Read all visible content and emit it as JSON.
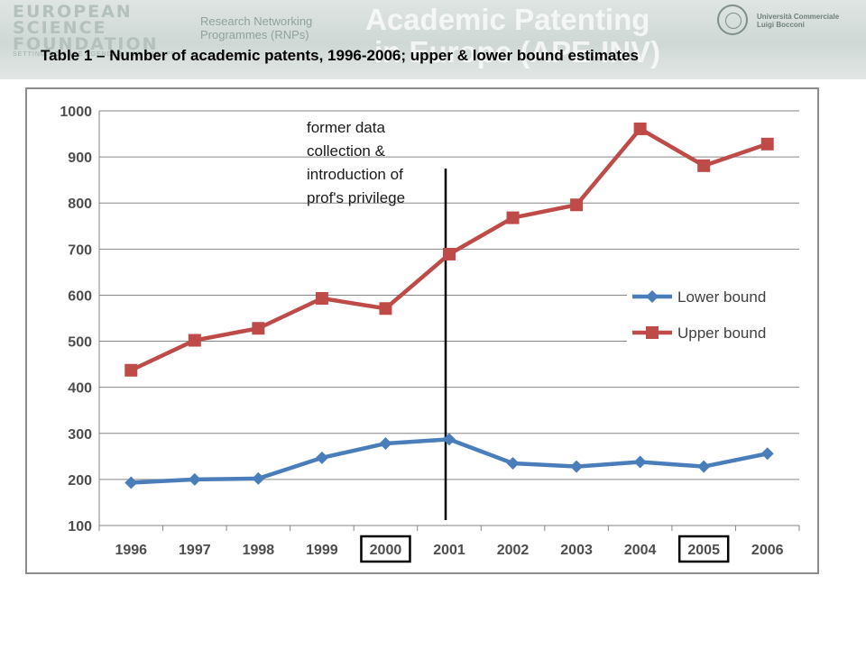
{
  "header": {
    "esf_logo_lines": [
      "EUROPEAN",
      "SCIENCE",
      "FOUNDATION"
    ],
    "esf_tagline": "SETTING SCIENCE AGENDAS FOR EUROPE",
    "rnp_line1": "Research Networking",
    "rnp_line2": "Programmes (RNPs)",
    "watermark_line1": "Academic Patenting",
    "watermark_line2": "in Europe (APE-INV)",
    "university_line1": "Università Commerciale",
    "university_line2": "Luigi Bocconi"
  },
  "table_title": "Table 1 – Number of academic patents, 1996-2006; upper & lower bound estimates",
  "colors": {
    "lower": "#4a7ebb",
    "upper": "#be4b48",
    "grid": "#868686",
    "axis_text": "#4d4d4d"
  },
  "chart_data": {
    "type": "line",
    "title": "",
    "xlabel": "",
    "ylabel": "",
    "categories": [
      "1996",
      "1997",
      "1998",
      "1999",
      "2000",
      "2001",
      "2002",
      "2003",
      "2004",
      "2005",
      "2006"
    ],
    "y_ticks": [
      "100",
      "200",
      "300",
      "400",
      "500",
      "600",
      "700",
      "800",
      "900",
      "1000"
    ],
    "ylim": [
      100,
      1000
    ],
    "grid": true,
    "legend_position": "right",
    "series": [
      {
        "name": "Lower bound",
        "marker": "diamond",
        "values": [
          193,
          200,
          202,
          247,
          278,
          287,
          235,
          228,
          238,
          228,
          256
        ]
      },
      {
        "name": "Upper bound",
        "marker": "square",
        "values": [
          437,
          502,
          528,
          593,
          571,
          689,
          768,
          796,
          961,
          881,
          928
        ]
      }
    ],
    "highlighted_categories": [
      "2000",
      "2005"
    ],
    "annotation": {
      "lines": [
        "former data",
        "collection &",
        "introduction of",
        "prof's privilege"
      ],
      "divider_after": "2001"
    }
  }
}
